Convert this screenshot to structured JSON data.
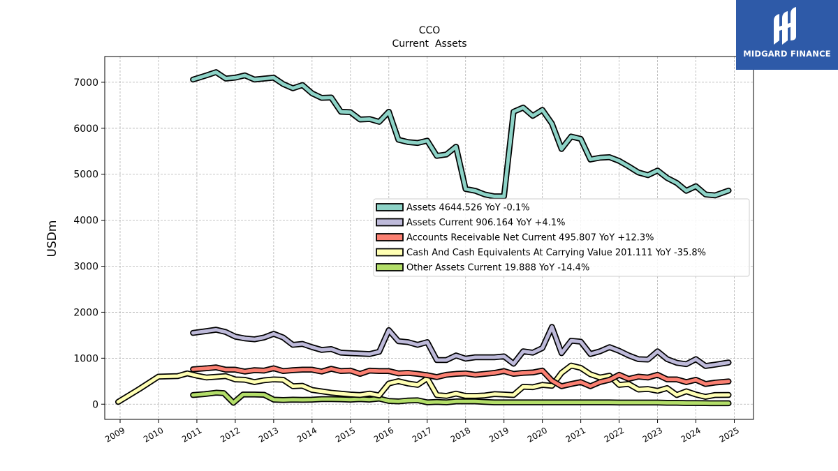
{
  "logo": {
    "text": "MIDGARD FINANCE"
  },
  "chart_data": {
    "type": "line",
    "title": "CCO",
    "subtitle": "Current  Assets",
    "ylabel": "USDm",
    "xlabel": "",
    "xlim": [
      2008.6,
      2025.5
    ],
    "ylim": [
      -330,
      7560
    ],
    "grid": true,
    "legend_position": "center-right",
    "x_ticks": [
      "2009",
      "2010",
      "2011",
      "2012",
      "2013",
      "2014",
      "2015",
      "2016",
      "2017",
      "2018",
      "2019",
      "2020",
      "2021",
      "2022",
      "2023",
      "2024",
      "2025"
    ],
    "y_ticks": [
      "0",
      "1000",
      "2000",
      "3000",
      "4000",
      "5000",
      "6000",
      "7000"
    ],
    "series": [
      {
        "name": "Other Assets Current  19.888 YoY -14.4%",
        "color": "#b3de69",
        "points": [
          [
            2010.9,
            200
          ],
          [
            2011.2,
            220
          ],
          [
            2011.5,
            250
          ],
          [
            2011.7,
            240
          ],
          [
            2011.95,
            30
          ],
          [
            2012.2,
            210
          ],
          [
            2012.5,
            210
          ],
          [
            2012.75,
            205
          ],
          [
            2013.0,
            100
          ],
          [
            2013.25,
            90
          ],
          [
            2013.5,
            100
          ],
          [
            2013.75,
            95
          ],
          [
            2014.0,
            100
          ],
          [
            2014.25,
            110
          ],
          [
            2014.5,
            110
          ],
          [
            2014.75,
            105
          ],
          [
            2015.0,
            100
          ],
          [
            2015.25,
            110
          ],
          [
            2015.5,
            100
          ],
          [
            2015.75,
            120
          ],
          [
            2016.0,
            70
          ],
          [
            2016.25,
            60
          ],
          [
            2016.5,
            80
          ],
          [
            2016.75,
            85
          ],
          [
            2017.0,
            40
          ],
          [
            2017.25,
            50
          ],
          [
            2017.5,
            40
          ],
          [
            2017.75,
            60
          ],
          [
            2018.0,
            60
          ],
          [
            2018.25,
            60
          ],
          [
            2018.5,
            50
          ],
          [
            2018.75,
            40
          ],
          [
            2019.0,
            40
          ],
          [
            2019.25,
            40
          ],
          [
            2019.5,
            40
          ],
          [
            2019.75,
            40
          ],
          [
            2020.0,
            40
          ],
          [
            2020.25,
            40
          ],
          [
            2020.5,
            40
          ],
          [
            2020.75,
            40
          ],
          [
            2021.0,
            40
          ],
          [
            2021.25,
            40
          ],
          [
            2021.5,
            40
          ],
          [
            2021.75,
            40
          ],
          [
            2022.0,
            35
          ],
          [
            2022.25,
            35
          ],
          [
            2022.5,
            35
          ],
          [
            2022.75,
            35
          ],
          [
            2023.0,
            35
          ],
          [
            2023.25,
            30
          ],
          [
            2023.5,
            30
          ],
          [
            2023.75,
            25
          ],
          [
            2024.0,
            25
          ],
          [
            2024.25,
            22
          ],
          [
            2024.5,
            20
          ],
          [
            2024.85,
            20
          ]
        ]
      },
      {
        "name": "Cash And Cash Equivalents At Carrying Value  201.111 YoY -35.8%",
        "color": "#ffffb3",
        "points": [
          [
            2008.95,
            50
          ],
          [
            2009.5,
            330
          ],
          [
            2010.0,
            600
          ],
          [
            2010.5,
            610
          ],
          [
            2010.75,
            670
          ],
          [
            2011.0,
            620
          ],
          [
            2011.25,
            580
          ],
          [
            2011.75,
            610
          ],
          [
            2012.0,
            540
          ],
          [
            2012.25,
            530
          ],
          [
            2012.5,
            480
          ],
          [
            2012.75,
            520
          ],
          [
            2013.0,
            540
          ],
          [
            2013.25,
            530
          ],
          [
            2013.5,
            390
          ],
          [
            2013.75,
            400
          ],
          [
            2014.0,
            310
          ],
          [
            2014.25,
            280
          ],
          [
            2014.5,
            250
          ],
          [
            2014.75,
            230
          ],
          [
            2015.0,
            210
          ],
          [
            2015.25,
            200
          ],
          [
            2015.5,
            230
          ],
          [
            2015.75,
            190
          ],
          [
            2016.0,
            450
          ],
          [
            2016.25,
            500
          ],
          [
            2016.5,
            450
          ],
          [
            2016.75,
            420
          ],
          [
            2017.0,
            560
          ],
          [
            2017.25,
            200
          ],
          [
            2017.5,
            180
          ],
          [
            2017.75,
            230
          ],
          [
            2018.0,
            180
          ],
          [
            2018.25,
            180
          ],
          [
            2018.5,
            190
          ],
          [
            2018.75,
            220
          ],
          [
            2019.0,
            210
          ],
          [
            2019.25,
            200
          ],
          [
            2019.5,
            380
          ],
          [
            2019.75,
            370
          ],
          [
            2020.0,
            420
          ],
          [
            2020.25,
            400
          ],
          [
            2020.5,
            680
          ],
          [
            2020.75,
            840
          ],
          [
            2021.0,
            790
          ],
          [
            2021.25,
            650
          ],
          [
            2021.5,
            580
          ],
          [
            2021.75,
            620
          ],
          [
            2022.0,
            420
          ],
          [
            2022.25,
            440
          ],
          [
            2022.5,
            320
          ],
          [
            2022.75,
            330
          ],
          [
            2023.0,
            290
          ],
          [
            2023.25,
            350
          ],
          [
            2023.5,
            200
          ],
          [
            2023.75,
            280
          ],
          [
            2024.0,
            210
          ],
          [
            2024.25,
            160
          ],
          [
            2024.5,
            200
          ],
          [
            2024.85,
            201
          ]
        ]
      },
      {
        "name": "Accounts Receivable Net Current  495.807 YoY +12.3%",
        "color": "#fb8072",
        "points": [
          [
            2010.9,
            760
          ],
          [
            2011.25,
            780
          ],
          [
            2011.5,
            800
          ],
          [
            2011.75,
            750
          ],
          [
            2012.0,
            750
          ],
          [
            2012.25,
            710
          ],
          [
            2012.5,
            740
          ],
          [
            2012.75,
            730
          ],
          [
            2013.0,
            780
          ],
          [
            2013.25,
            720
          ],
          [
            2013.5,
            740
          ],
          [
            2013.75,
            750
          ],
          [
            2014.0,
            750
          ],
          [
            2014.25,
            710
          ],
          [
            2014.5,
            770
          ],
          [
            2014.75,
            720
          ],
          [
            2015.0,
            730
          ],
          [
            2015.25,
            660
          ],
          [
            2015.5,
            730
          ],
          [
            2015.75,
            720
          ],
          [
            2016.0,
            720
          ],
          [
            2016.25,
            670
          ],
          [
            2016.5,
            680
          ],
          [
            2016.75,
            660
          ],
          [
            2017.0,
            630
          ],
          [
            2017.25,
            590
          ],
          [
            2017.5,
            640
          ],
          [
            2017.75,
            660
          ],
          [
            2018.0,
            670
          ],
          [
            2018.25,
            640
          ],
          [
            2018.5,
            660
          ],
          [
            2018.75,
            680
          ],
          [
            2019.0,
            720
          ],
          [
            2019.25,
            660
          ],
          [
            2019.5,
            680
          ],
          [
            2019.75,
            690
          ],
          [
            2020.0,
            730
          ],
          [
            2020.25,
            510
          ],
          [
            2020.5,
            390
          ],
          [
            2020.75,
            440
          ],
          [
            2021.0,
            480
          ],
          [
            2021.25,
            390
          ],
          [
            2021.5,
            480
          ],
          [
            2021.75,
            530
          ],
          [
            2022.0,
            640
          ],
          [
            2022.25,
            550
          ],
          [
            2022.5,
            600
          ],
          [
            2022.75,
            580
          ],
          [
            2023.0,
            640
          ],
          [
            2023.25,
            540
          ],
          [
            2023.5,
            540
          ],
          [
            2023.75,
            480
          ],
          [
            2024.0,
            530
          ],
          [
            2024.25,
            440
          ],
          [
            2024.5,
            470
          ],
          [
            2024.85,
            496
          ]
        ]
      },
      {
        "name": "Assets Current  906.164 YoY +4.1%",
        "color": "#bebada",
        "points": [
          [
            2010.9,
            1550
          ],
          [
            2011.25,
            1590
          ],
          [
            2011.5,
            1620
          ],
          [
            2011.75,
            1570
          ],
          [
            2012.0,
            1470
          ],
          [
            2012.25,
            1430
          ],
          [
            2012.5,
            1410
          ],
          [
            2012.75,
            1450
          ],
          [
            2013.0,
            1530
          ],
          [
            2013.25,
            1450
          ],
          [
            2013.5,
            1290
          ],
          [
            2013.75,
            1310
          ],
          [
            2014.0,
            1240
          ],
          [
            2014.25,
            1180
          ],
          [
            2014.5,
            1200
          ],
          [
            2014.75,
            1120
          ],
          [
            2015.0,
            1110
          ],
          [
            2015.25,
            1100
          ],
          [
            2015.5,
            1090
          ],
          [
            2015.75,
            1140
          ],
          [
            2016.0,
            1610
          ],
          [
            2016.25,
            1370
          ],
          [
            2016.5,
            1350
          ],
          [
            2016.75,
            1290
          ],
          [
            2017.0,
            1350
          ],
          [
            2017.25,
            960
          ],
          [
            2017.5,
            960
          ],
          [
            2017.75,
            1060
          ],
          [
            2018.0,
            990
          ],
          [
            2018.25,
            1020
          ],
          [
            2018.5,
            1020
          ],
          [
            2018.75,
            1020
          ],
          [
            2019.0,
            1040
          ],
          [
            2019.25,
            880
          ],
          [
            2019.5,
            1150
          ],
          [
            2019.75,
            1120
          ],
          [
            2020.0,
            1220
          ],
          [
            2020.25,
            1680
          ],
          [
            2020.5,
            1110
          ],
          [
            2020.75,
            1380
          ],
          [
            2021.0,
            1360
          ],
          [
            2021.25,
            1090
          ],
          [
            2021.5,
            1150
          ],
          [
            2021.75,
            1240
          ],
          [
            2022.0,
            1160
          ],
          [
            2022.25,
            1060
          ],
          [
            2022.5,
            980
          ],
          [
            2022.75,
            970
          ],
          [
            2023.0,
            1150
          ],
          [
            2023.25,
            980
          ],
          [
            2023.5,
            900
          ],
          [
            2023.75,
            870
          ],
          [
            2024.0,
            980
          ],
          [
            2024.25,
            830
          ],
          [
            2024.5,
            860
          ],
          [
            2024.85,
            906
          ]
        ]
      },
      {
        "name": "Assets  4644.526 YoY -0.1%",
        "color": "#8dd3c7",
        "points": [
          [
            2010.9,
            7060
          ],
          [
            2011.25,
            7150
          ],
          [
            2011.5,
            7220
          ],
          [
            2011.75,
            7080
          ],
          [
            2012.0,
            7100
          ],
          [
            2012.25,
            7150
          ],
          [
            2012.5,
            7060
          ],
          [
            2012.75,
            7080
          ],
          [
            2013.0,
            7100
          ],
          [
            2013.25,
            6960
          ],
          [
            2013.5,
            6870
          ],
          [
            2013.75,
            6940
          ],
          [
            2014.0,
            6760
          ],
          [
            2014.25,
            6660
          ],
          [
            2014.5,
            6670
          ],
          [
            2014.75,
            6360
          ],
          [
            2015.0,
            6350
          ],
          [
            2015.25,
            6190
          ],
          [
            2015.5,
            6200
          ],
          [
            2015.75,
            6140
          ],
          [
            2016.0,
            6360
          ],
          [
            2016.25,
            5750
          ],
          [
            2016.5,
            5700
          ],
          [
            2016.75,
            5680
          ],
          [
            2017.0,
            5730
          ],
          [
            2017.25,
            5400
          ],
          [
            2017.5,
            5430
          ],
          [
            2017.75,
            5600
          ],
          [
            2018.0,
            4680
          ],
          [
            2018.25,
            4640
          ],
          [
            2018.5,
            4560
          ],
          [
            2018.75,
            4520
          ],
          [
            2019.0,
            4520
          ],
          [
            2019.25,
            6360
          ],
          [
            2019.5,
            6450
          ],
          [
            2019.75,
            6270
          ],
          [
            2020.0,
            6400
          ],
          [
            2020.25,
            6100
          ],
          [
            2020.5,
            5550
          ],
          [
            2020.75,
            5820
          ],
          [
            2021.0,
            5770
          ],
          [
            2021.25,
            5320
          ],
          [
            2021.5,
            5360
          ],
          [
            2021.75,
            5370
          ],
          [
            2022.0,
            5290
          ],
          [
            2022.25,
            5170
          ],
          [
            2022.5,
            5040
          ],
          [
            2022.75,
            4980
          ],
          [
            2023.0,
            5080
          ],
          [
            2023.25,
            4920
          ],
          [
            2023.5,
            4810
          ],
          [
            2023.75,
            4640
          ],
          [
            2024.0,
            4740
          ],
          [
            2024.25,
            4560
          ],
          [
            2024.5,
            4540
          ],
          [
            2024.85,
            4645
          ]
        ]
      }
    ],
    "legend_order": [
      4,
      3,
      2,
      1,
      0
    ]
  }
}
